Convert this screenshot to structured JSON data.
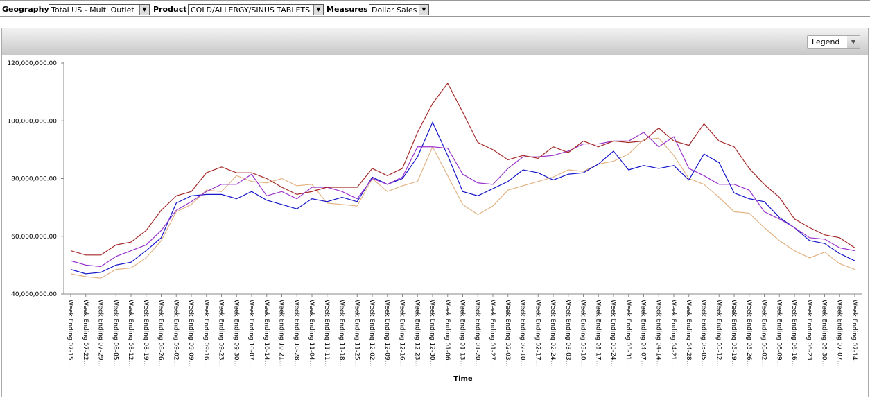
{
  "toolbar": {
    "geography_label": "Geography",
    "geography_value": "Total US - Multi Outlet",
    "product_label": "Product",
    "product_value": "COLD/ALLERGY/SINUS TABLETS",
    "measures_label": "Measures",
    "measures_value": "Dollar Sales"
  },
  "legend_dropdown": "Legend",
  "chart_data": {
    "type": "line",
    "x_label": "Time",
    "categories": [
      "Week Ending 07-15...",
      "Week Ending 07-22...",
      "Week Ending 07-29...",
      "Week Ending 08-05...",
      "Week Ending 08-12...",
      "Week Ending 08-19...",
      "Week Ending 08-26...",
      "Week Ending 09-02...",
      "Week Ending 09-09...",
      "Week Ending 09-16...",
      "Week Ending 09-23...",
      "Week Ending 09-30...",
      "Week Ending 10-07...",
      "Week Ending 10-14...",
      "Week Ending 10-21...",
      "Week Ending 10-28...",
      "Week Ending 11-04...",
      "Week Ending 11-11...",
      "Week Ending 11-18...",
      "Week Ending 11-25...",
      "Week Ending 12-02...",
      "Week Ending 12-09...",
      "Week Ending 12-16...",
      "Week Ending 12-23...",
      "Week Ending 12-30...",
      "Week Ending 01-06...",
      "Week Ending 01-13...",
      "Week Ending 01-20...",
      "Week Ending 01-27...",
      "Week Ending 02-03...",
      "Week Ending 02-10...",
      "Week Ending 02-17...",
      "Week Ending 02-24...",
      "Week Ending 03-03...",
      "Week Ending 03-10...",
      "Week Ending 03-17...",
      "Week Ending 03-24...",
      "Week Ending 03-31...",
      "Week Ending 04-07...",
      "Week Ending 04-14...",
      "Week Ending 04-21...",
      "Week Ending 04-28...",
      "Week Ending 05-05...",
      "Week Ending 05-12...",
      "Week Ending 05-19...",
      "Week Ending 05-26...",
      "Week Ending 06-02...",
      "Week Ending 06-09...",
      "Week Ending 06-16...",
      "Week Ending 06-23...",
      "Week Ending 06-30...",
      "Week Ending 07-07...",
      "Week Ending 07-14..."
    ],
    "series": [
      {
        "color": "#a52a2a",
        "values": [
          55000000,
          53500000,
          53500000,
          57000000,
          58000000,
          62000000,
          69000000,
          74000000,
          75500000,
          82000000,
          84000000,
          82000000,
          82000000,
          80000000,
          77000000,
          74500000,
          75500000,
          77000000,
          77000000,
          77000000,
          83500000,
          81000000,
          83500000,
          96000000,
          106000000,
          113000000,
          103000000,
          92500000,
          90000000,
          86500000,
          88000000,
          87000000,
          91000000,
          89000000,
          93000000,
          91000000,
          93000000,
          92500000,
          93000000,
          97500000,
          93000000,
          91500000,
          99000000,
          93000000,
          91000000,
          83500000,
          78000000,
          73500000,
          66000000,
          63000000,
          60500000,
          59500000,
          56000000
        ]
      },
      {
        "color": "#9933cc",
        "values": [
          51500000,
          50000000,
          49500000,
          53000000,
          55000000,
          57000000,
          62000000,
          69000000,
          72000000,
          75500000,
          78000000,
          78000000,
          81500000,
          74000000,
          75500000,
          73000000,
          77000000,
          77000000,
          75500000,
          73000000,
          80000000,
          78000000,
          80500000,
          91000000,
          91000000,
          90500000,
          81500000,
          78500000,
          78000000,
          83500000,
          87500000,
          87500000,
          88000000,
          89500000,
          92000000,
          92000000,
          93000000,
          93000000,
          96000000,
          91000000,
          94500000,
          83500000,
          81000000,
          78000000,
          78000000,
          76000000,
          68500000,
          66000000,
          63000000,
          59500000,
          59000000,
          56000000,
          55000000
        ]
      },
      {
        "color": "#1515c8",
        "values": [
          48500000,
          47000000,
          47500000,
          50000000,
          51000000,
          55000000,
          59500000,
          71500000,
          74000000,
          74500000,
          74500000,
          73000000,
          75500000,
          72500000,
          71000000,
          69500000,
          73000000,
          72000000,
          73500000,
          72000000,
          80500000,
          78000000,
          80000000,
          87500000,
          99500000,
          88000000,
          75500000,
          74000000,
          76500000,
          79000000,
          83000000,
          82000000,
          79500000,
          81500000,
          82000000,
          85000000,
          89500000,
          83000000,
          84500000,
          83500000,
          84500000,
          79500000,
          88500000,
          85500000,
          75000000,
          73000000,
          72000000,
          66500000,
          63000000,
          58500000,
          57500000,
          54000000,
          51500000
        ]
      },
      {
        "color": "#e2b384",
        "values": [
          47000000,
          46000000,
          45500000,
          48500000,
          49000000,
          52500000,
          58500000,
          68500000,
          71000000,
          76000000,
          75500000,
          81000000,
          79000000,
          78500000,
          80000000,
          77500000,
          78000000,
          71500000,
          71000000,
          70500000,
          80000000,
          75500000,
          77500000,
          79000000,
          91000000,
          81000000,
          71000000,
          67500000,
          70500000,
          76000000,
          77500000,
          79000000,
          80500000,
          83000000,
          82500000,
          85000000,
          86000000,
          88500000,
          93500000,
          94000000,
          88000000,
          80000000,
          78000000,
          73500000,
          68500000,
          68000000,
          63000000,
          58500000,
          55000000,
          52500000,
          54500000,
          50500000,
          48500000
        ]
      }
    ],
    "ylim": [
      40000000,
      120000000
    ],
    "yticks": [
      {
        "value": 40000000,
        "label": "40,000,000.00"
      },
      {
        "value": 60000000,
        "label": "60,000,000.00"
      },
      {
        "value": 80000000,
        "label": "80,000,000.00"
      },
      {
        "value": 100000000,
        "label": "100,000,000.00"
      },
      {
        "value": 120000000,
        "label": "120,000,000.00"
      }
    ]
  }
}
